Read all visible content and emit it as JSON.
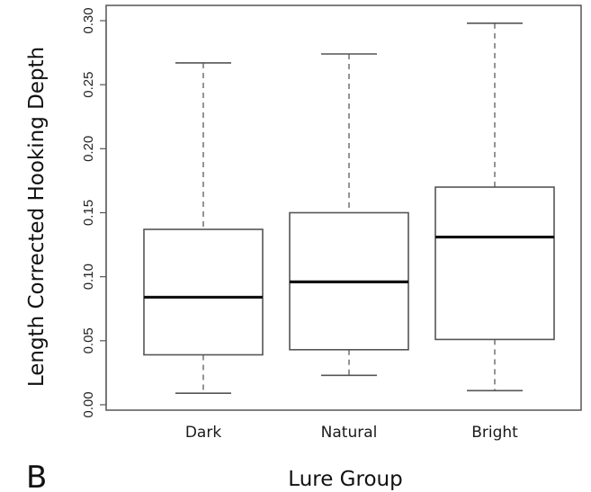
{
  "panel_label": "B",
  "chart_data": {
    "type": "boxplot",
    "xlabel": "Lure Group",
    "ylabel": "Length Corrected Hooking Depth",
    "ylim": [
      0.0,
      0.3
    ],
    "yticks": [
      "0.00",
      "0.05",
      "0.10",
      "0.15",
      "0.20",
      "0.25",
      "0.30"
    ],
    "grid": false,
    "categories": [
      "Dark",
      "Natural",
      "Bright"
    ],
    "boxes": [
      {
        "label": "Dark",
        "whisker_low": 0.009,
        "q1": 0.039,
        "median": 0.084,
        "q3": 0.137,
        "whisker_high": 0.267
      },
      {
        "label": "Natural",
        "whisker_low": 0.023,
        "q1": 0.043,
        "median": 0.096,
        "q3": 0.15,
        "whisker_high": 0.274
      },
      {
        "label": "Bright",
        "whisker_low": 0.011,
        "q1": 0.051,
        "median": 0.131,
        "q3": 0.17,
        "whisker_high": 0.298
      }
    ]
  }
}
